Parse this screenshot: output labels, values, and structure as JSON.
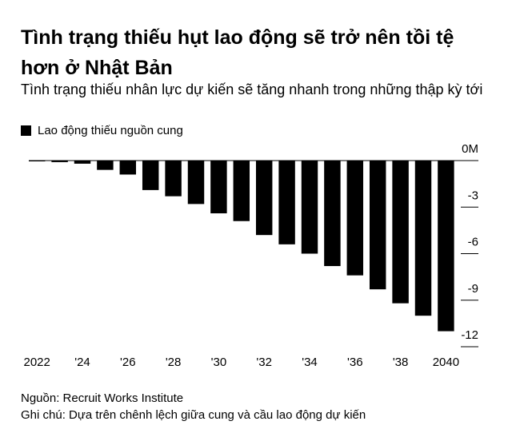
{
  "chart_data": {
    "type": "bar",
    "title": "Tình trạng thiếu hụt lao động sẽ trở nên tồi tệ hơn ở Nhật Bản",
    "subtitle": "Tình trạng thiếu nhân lực dự kiến sẽ tăng nhanh trong những thập kỳ tới",
    "categories": [
      "2022",
      null,
      "'24",
      null,
      "'26",
      null,
      "'28",
      null,
      "'30",
      null,
      "'32",
      null,
      "'34",
      null,
      "'36",
      null,
      "'38",
      null,
      "2040"
    ],
    "series": [
      {
        "name": "Lao động thiếu nguồn cung",
        "color": "#000000",
        "values": [
          -0.02,
          -0.1,
          -0.2,
          -0.6,
          -0.9,
          -1.9,
          -2.3,
          -2.8,
          -3.4,
          -3.9,
          -4.8,
          -5.4,
          -6.0,
          -6.8,
          -7.4,
          -8.3,
          -9.2,
          -10.0,
          -11.0
        ]
      }
    ],
    "ylim": [
      -12,
      0
    ],
    "yticks": [
      {
        "value": 0,
        "label": "0M"
      },
      -3,
      -6,
      -9,
      -12
    ],
    "source": "Nguồn: Recruit Works Institute",
    "note": "Ghi chú: Dựa trên chênh lệch giữa cung và cầu lao động dự kiến"
  }
}
